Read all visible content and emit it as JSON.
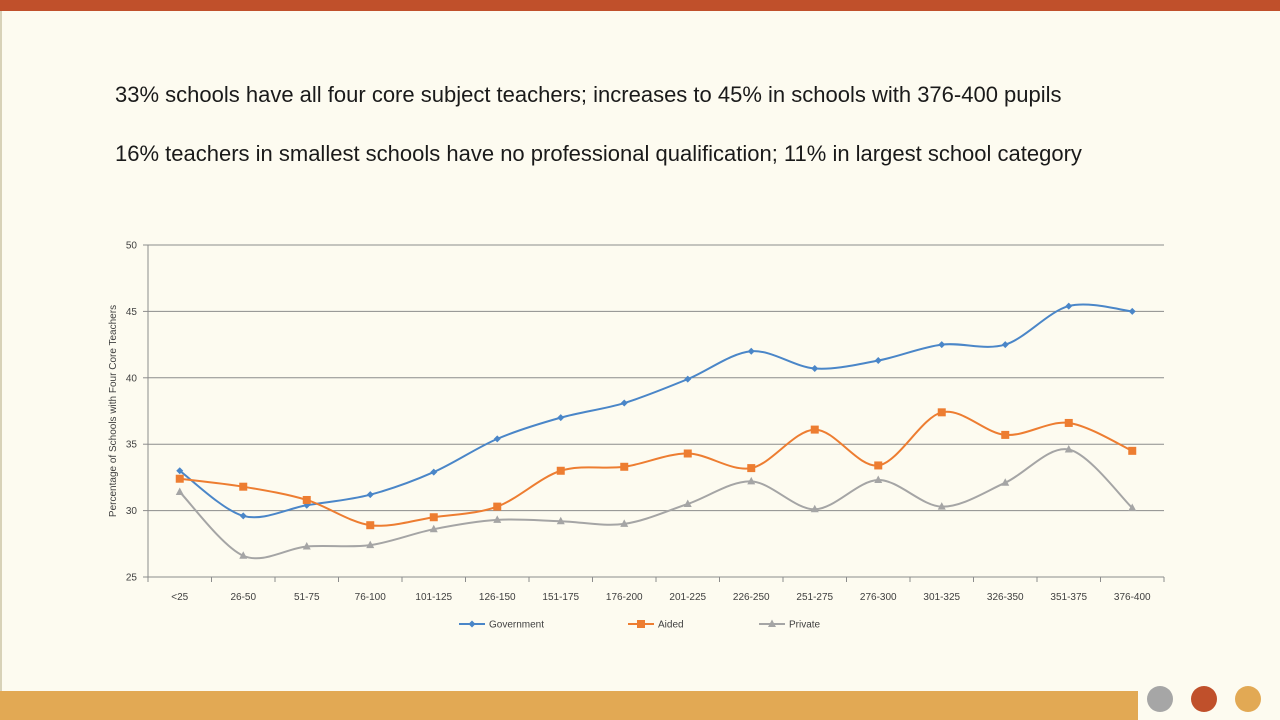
{
  "headlines": {
    "line1": "33% schools have all four core subject teachers; increases to 45% in schools with 376-400 pupils",
    "line2": "16% teachers in smallest schools have no professional qualification; 11% in largest school category"
  },
  "theme": {
    "bar_top": "#c0502b",
    "bar_bottom": "#e2a954",
    "dots": [
      "#a6a6a6",
      "#c0502b",
      "#e2a954"
    ]
  },
  "chart_data": {
    "type": "line",
    "title": "",
    "xlabel": "",
    "ylabel": "Percentage of Schools with Four Core Teachers",
    "ylim": [
      25,
      50
    ],
    "yticks": [
      25,
      30,
      35,
      40,
      45,
      50
    ],
    "grid": true,
    "legend_position": "bottom",
    "categories": [
      "<25",
      "26-50",
      "51-75",
      "76-100",
      "101-125",
      "126-150",
      "151-175",
      "176-200",
      "201-225",
      "226-250",
      "251-275",
      "276-300",
      "301-325",
      "326-350",
      "351-375",
      "376-400"
    ],
    "series": [
      {
        "name": "Government",
        "color": "#4a86c8",
        "marker": "diamond",
        "values": [
          33.0,
          29.6,
          30.4,
          31.2,
          32.9,
          35.4,
          37.0,
          38.1,
          39.9,
          42.0,
          40.7,
          41.3,
          42.5,
          42.5,
          45.4,
          45.0
        ]
      },
      {
        "name": "Aided",
        "color": "#ed7d31",
        "marker": "square",
        "values": [
          32.4,
          31.8,
          30.8,
          28.9,
          29.5,
          30.3,
          33.0,
          33.3,
          34.3,
          33.2,
          36.1,
          33.4,
          37.4,
          35.7,
          36.6,
          34.5
        ]
      },
      {
        "name": "Private",
        "color": "#a5a5a5",
        "marker": "triangle",
        "values": [
          31.4,
          26.6,
          27.3,
          27.4,
          28.6,
          29.3,
          29.2,
          29.0,
          30.5,
          32.2,
          30.1,
          32.3,
          30.3,
          32.1,
          34.6,
          30.2
        ]
      }
    ]
  }
}
